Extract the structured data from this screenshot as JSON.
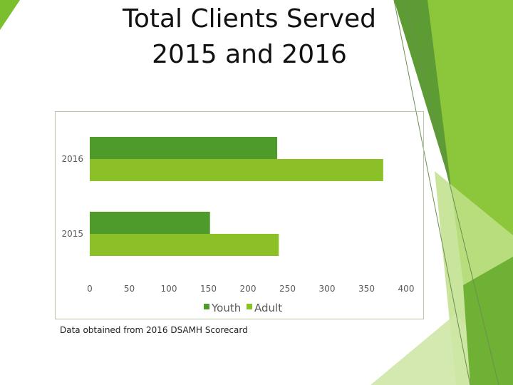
{
  "slide": {
    "title_line1": "Total Clients Served",
    "title_line2": "2015 and 2016",
    "footnote": "Data obtained from 2016 DSAMH Scorecard"
  },
  "colors": {
    "youth": "#4e9a2a",
    "adult": "#8cc027",
    "decor_dark": "#4e8f2f",
    "decor_mid": "#7bbf2f",
    "decor_light": "#bfe08a"
  },
  "chart_data": {
    "type": "bar",
    "orientation": "horizontal",
    "categories": [
      "2015",
      "2016"
    ],
    "series": [
      {
        "name": "Youth",
        "values": [
          152,
          237
        ]
      },
      {
        "name": "Adult",
        "values": [
          239,
          371
        ]
      }
    ],
    "xticks": [
      "0",
      "50",
      "100",
      "150",
      "200",
      "250",
      "300",
      "350",
      "400"
    ],
    "xlim": [
      0,
      400
    ],
    "grid": false,
    "legend_position": "bottom"
  }
}
